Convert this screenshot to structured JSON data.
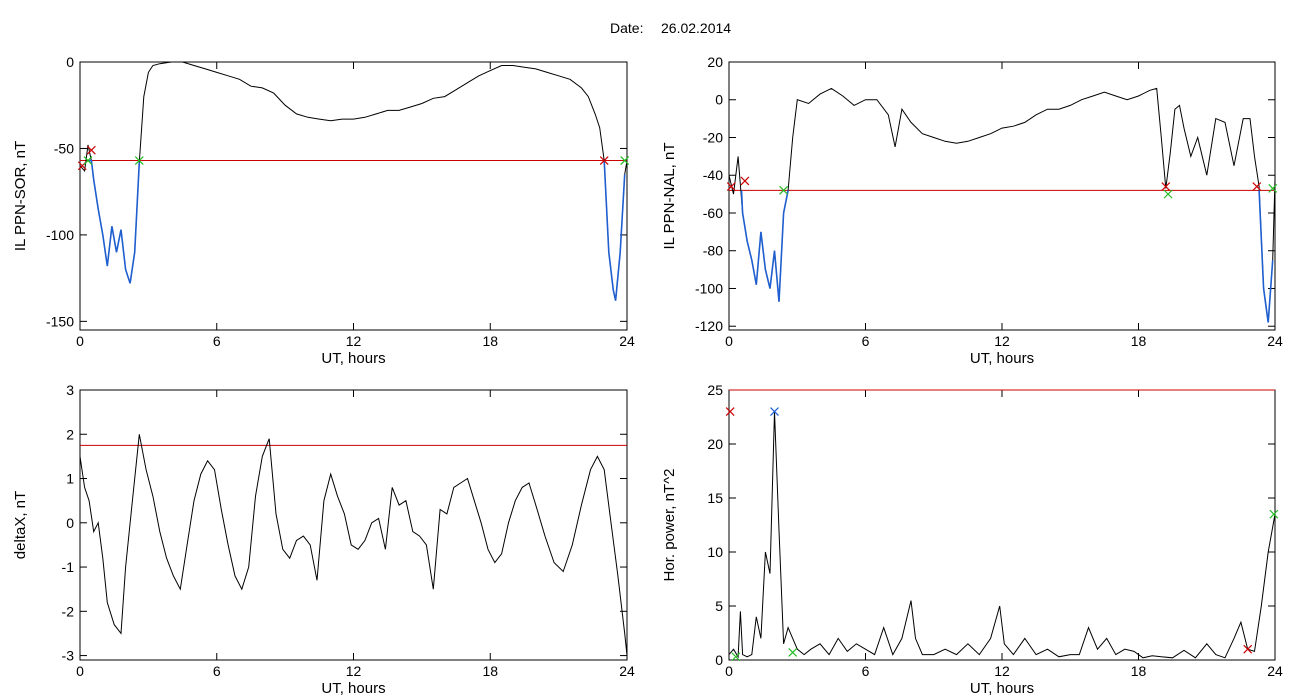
{
  "date_label": "Date:",
  "date_value": "26.02.2014",
  "chart_data": [
    {
      "type": "line",
      "panel": "top-left",
      "ylabel": "IL PPN-SOR, nT",
      "xlabel": "UT, hours",
      "xlim": [
        0,
        24
      ],
      "ylim": [
        -155,
        0
      ],
      "xticks": [
        0,
        6,
        12,
        18,
        24
      ],
      "yticks": [
        -150,
        -100,
        -50,
        0
      ],
      "threshold": -57,
      "series": [
        {
          "color": "#000000",
          "x": [
            0,
            0.2,
            0.35,
            0.5,
            0.6,
            0.8,
            1.0,
            1.2,
            1.4,
            1.6,
            1.8,
            2.0,
            2.2,
            2.4,
            2.6,
            2.8,
            3.0,
            3.2,
            3.5,
            4.0,
            4.5,
            5.0,
            5.5,
            6.0,
            6.5,
            7.0,
            7.5,
            8.0,
            8.5,
            9.0,
            9.5,
            10.0,
            10.5,
            11.0,
            11.5,
            12.0,
            12.5,
            13.0,
            13.5,
            14.0,
            14.5,
            15.0,
            15.5,
            16.0,
            16.5,
            17.0,
            17.5,
            18.0,
            18.5,
            19.0,
            19.5,
            20.0,
            20.5,
            21.0,
            21.5,
            22.0,
            22.3,
            22.6,
            22.8,
            23.0,
            23.2,
            23.4,
            23.5,
            23.7,
            23.9,
            24.0
          ],
          "values": [
            -60,
            -63,
            -48,
            -57,
            -68,
            -85,
            -100,
            -118,
            -95,
            -110,
            -97,
            -120,
            -128,
            -110,
            -58,
            -20,
            -6,
            -2,
            -1,
            0,
            0,
            -2,
            -4,
            -6,
            -8,
            -10,
            -14,
            -15,
            -18,
            -25,
            -30,
            -32,
            -33,
            -34,
            -33,
            -33,
            -32,
            -30,
            -28,
            -28,
            -26,
            -24,
            -21,
            -20,
            -16,
            -12,
            -8,
            -5,
            -2,
            -2,
            -3,
            -4,
            -6,
            -8,
            -10,
            -15,
            -20,
            -30,
            -38,
            -57,
            -110,
            -132,
            -138,
            -110,
            -65,
            -57
          ]
        },
        {
          "color": "#1f5fcf",
          "x": [
            0.35,
            0.5,
            0.6,
            0.8,
            1.0,
            1.2,
            1.4,
            1.6,
            1.8,
            2.0,
            2.2,
            2.4,
            2.6
          ],
          "values": [
            -57,
            -57,
            -68,
            -85,
            -100,
            -118,
            -95,
            -110,
            -97,
            -120,
            -128,
            -110,
            -58
          ]
        },
        {
          "color": "#1f5fcf",
          "x": [
            23.0,
            23.2,
            23.4,
            23.5,
            23.7,
            23.9
          ],
          "values": [
            -57,
            -110,
            -132,
            -138,
            -110,
            -65
          ]
        }
      ],
      "markers": [
        {
          "x": 0.1,
          "y": -60,
          "color": "#cc0000"
        },
        {
          "x": 0.5,
          "y": -51,
          "color": "#cc0000"
        },
        {
          "x": 0.35,
          "y": -57,
          "color": "#22bb22"
        },
        {
          "x": 2.6,
          "y": -57,
          "color": "#22bb22"
        },
        {
          "x": 23.0,
          "y": -57,
          "color": "#cc0000"
        },
        {
          "x": 23.9,
          "y": -57,
          "color": "#22bb22"
        }
      ]
    },
    {
      "type": "line",
      "panel": "top-right",
      "ylabel": "IL PPN-NAL, nT",
      "xlabel": "UT, hours",
      "xlim": [
        0,
        24
      ],
      "ylim": [
        -122,
        20
      ],
      "xticks": [
        0,
        6,
        12,
        18,
        24
      ],
      "yticks": [
        -120,
        -100,
        -80,
        -60,
        -40,
        -20,
        0,
        20
      ],
      "threshold": -48,
      "series": [
        {
          "color": "#000000",
          "x": [
            0,
            0.2,
            0.4,
            0.6,
            0.8,
            1.0,
            1.2,
            1.4,
            1.6,
            1.8,
            2.0,
            2.2,
            2.4,
            2.6,
            2.8,
            3.0,
            3.5,
            4.0,
            4.5,
            5.0,
            5.5,
            6.0,
            6.5,
            7.0,
            7.3,
            7.6,
            8.0,
            8.5,
            9.0,
            9.5,
            10.0,
            10.5,
            11.0,
            11.5,
            12.0,
            12.5,
            13.0,
            13.5,
            14.0,
            14.5,
            15.0,
            15.5,
            16.0,
            16.5,
            17.0,
            17.5,
            18.0,
            18.5,
            18.8,
            19.0,
            19.2,
            19.4,
            19.6,
            19.8,
            20.0,
            20.3,
            20.6,
            21.0,
            21.4,
            21.8,
            22.2,
            22.6,
            22.9,
            23.1,
            23.3,
            23.5,
            23.7,
            23.9,
            24.0
          ],
          "values": [
            -40,
            -50,
            -30,
            -60,
            -75,
            -85,
            -98,
            -70,
            -90,
            -100,
            -80,
            -107,
            -60,
            -48,
            -20,
            0,
            -2,
            3,
            6,
            2,
            -3,
            0,
            0,
            -8,
            -25,
            -5,
            -12,
            -18,
            -20,
            -22,
            -23,
            -22,
            -20,
            -18,
            -15,
            -14,
            -12,
            -8,
            -5,
            -5,
            -3,
            0,
            2,
            4,
            2,
            0,
            2,
            5,
            6,
            -20,
            -47,
            -28,
            -5,
            -3,
            -15,
            -30,
            -20,
            -40,
            -10,
            -12,
            -35,
            -10,
            -10,
            -30,
            -46,
            -100,
            -118,
            -85,
            -42
          ]
        },
        {
          "color": "#1f5fcf",
          "x": [
            0.55,
            0.6,
            0.8,
            1.0,
            1.2,
            1.4,
            1.6,
            1.8,
            2.0,
            2.2,
            2.4,
            2.6
          ],
          "values": [
            -48,
            -60,
            -75,
            -85,
            -98,
            -70,
            -90,
            -100,
            -80,
            -107,
            -60,
            -48
          ]
        },
        {
          "color": "#1f5fcf",
          "x": [
            23.3,
            23.5,
            23.7,
            23.9
          ],
          "values": [
            -48,
            -100,
            -118,
            -85
          ]
        }
      ],
      "markers": [
        {
          "x": 0.1,
          "y": -46,
          "color": "#cc0000"
        },
        {
          "x": 0.7,
          "y": -43,
          "color": "#cc0000"
        },
        {
          "x": 2.4,
          "y": -48,
          "color": "#22bb22"
        },
        {
          "x": 19.2,
          "y": -46,
          "color": "#cc0000"
        },
        {
          "x": 19.3,
          "y": -50,
          "color": "#22bb22"
        },
        {
          "x": 23.2,
          "y": -46,
          "color": "#cc0000"
        },
        {
          "x": 23.9,
          "y": -47,
          "color": "#22bb22"
        }
      ]
    },
    {
      "type": "line",
      "panel": "bottom-left",
      "ylabel": "deltaX, nT",
      "xlabel": "UT, hours",
      "xlim": [
        0,
        24
      ],
      "ylim": [
        -3.1,
        3
      ],
      "xticks": [
        0,
        6,
        12,
        18,
        24
      ],
      "yticks": [
        -3,
        -2,
        -1,
        0,
        1,
        2,
        3
      ],
      "threshold": 1.75,
      "series": [
        {
          "color": "#000000",
          "x": [
            0,
            0.2,
            0.4,
            0.6,
            0.8,
            1.0,
            1.2,
            1.5,
            1.8,
            2.0,
            2.3,
            2.6,
            2.9,
            3.2,
            3.5,
            3.8,
            4.1,
            4.4,
            4.7,
            5.0,
            5.3,
            5.6,
            5.9,
            6.2,
            6.5,
            6.8,
            7.1,
            7.4,
            7.7,
            8.0,
            8.3,
            8.6,
            8.9,
            9.2,
            9.5,
            9.8,
            10.1,
            10.4,
            10.7,
            11.0,
            11.3,
            11.6,
            11.9,
            12.2,
            12.5,
            12.8,
            13.1,
            13.4,
            13.7,
            14.0,
            14.3,
            14.6,
            14.9,
            15.2,
            15.5,
            15.8,
            16.1,
            16.4,
            16.7,
            17.0,
            17.3,
            17.6,
            17.9,
            18.2,
            18.5,
            18.8,
            19.1,
            19.4,
            19.7,
            20.0,
            20.4,
            20.8,
            21.2,
            21.6,
            22.0,
            22.4,
            22.7,
            23.0,
            23.3,
            23.6,
            23.9,
            24.0
          ],
          "values": [
            1.5,
            0.8,
            0.5,
            -0.2,
            0,
            -0.8,
            -1.8,
            -2.3,
            -2.5,
            -1.0,
            0.5,
            2.0,
            1.2,
            0.6,
            -0.2,
            -0.8,
            -1.2,
            -1.5,
            -0.5,
            0.5,
            1.1,
            1.4,
            1.2,
            0.3,
            -0.5,
            -1.2,
            -1.5,
            -1.0,
            0.6,
            1.5,
            1.9,
            0.2,
            -0.6,
            -0.8,
            -0.4,
            -0.3,
            -0.5,
            -1.3,
            0.5,
            1.1,
            0.6,
            0.2,
            -0.5,
            -0.6,
            -0.4,
            0.0,
            0.1,
            -0.6,
            0.8,
            0.4,
            0.5,
            -0.2,
            -0.3,
            -0.5,
            -1.5,
            0.3,
            0.2,
            0.8,
            0.9,
            1.0,
            0.5,
            0.0,
            -0.6,
            -0.9,
            -0.7,
            0.0,
            0.5,
            0.8,
            0.9,
            0.4,
            -0.3,
            -0.9,
            -1.1,
            -0.5,
            0.4,
            1.2,
            1.5,
            1.2,
            0.0,
            -1.2,
            -2.5,
            -3.0
          ]
        }
      ],
      "markers": []
    },
    {
      "type": "line",
      "panel": "bottom-right",
      "ylabel": "Hor. power, nT^2",
      "xlabel": "UT, hours",
      "xlim": [
        0,
        24
      ],
      "ylim": [
        0,
        25
      ],
      "xticks": [
        0,
        6,
        12,
        18,
        24
      ],
      "yticks": [
        0,
        5,
        10,
        15,
        20,
        25
      ],
      "threshold": 25,
      "series": [
        {
          "color": "#000000",
          "x": [
            0,
            0.2,
            0.4,
            0.5,
            0.6,
            0.8,
            1.0,
            1.2,
            1.4,
            1.6,
            1.8,
            2.0,
            2.2,
            2.4,
            2.6,
            2.8,
            3.0,
            3.3,
            3.6,
            4.0,
            4.4,
            4.8,
            5.2,
            5.6,
            6.0,
            6.4,
            6.8,
            7.2,
            7.6,
            8.0,
            8.2,
            8.5,
            9.0,
            9.5,
            10.0,
            10.5,
            11.0,
            11.5,
            11.9,
            12.1,
            12.5,
            13.0,
            13.5,
            14.0,
            14.5,
            15.0,
            15.4,
            15.8,
            16.2,
            16.6,
            17.0,
            17.4,
            17.8,
            18.2,
            18.6,
            19.0,
            19.5,
            20.0,
            20.5,
            21.0,
            21.4,
            21.8,
            22.2,
            22.5,
            22.8,
            23.1,
            23.4,
            23.7,
            24.0
          ],
          "values": [
            0.5,
            1,
            0.3,
            4.5,
            0.5,
            0.3,
            0.5,
            4,
            2,
            10,
            8,
            23,
            12,
            1.5,
            3,
            2,
            1,
            0.5,
            1,
            1.5,
            0.5,
            2,
            0.8,
            1.5,
            1,
            0.5,
            3,
            0.5,
            2,
            5.5,
            2,
            0.5,
            0.5,
            1,
            0.5,
            1.5,
            0.5,
            2,
            5,
            1.5,
            0.5,
            2,
            0.5,
            1,
            0.3,
            0.5,
            0.5,
            3,
            1,
            2,
            0.5,
            1,
            0.8,
            0.2,
            0.4,
            0.3,
            0.2,
            0.9,
            0.2,
            1.5,
            0.5,
            0.2,
            2,
            3.5,
            1,
            0.8,
            5,
            10,
            13.5
          ]
        }
      ],
      "markers": [
        {
          "x": 0.05,
          "y": 23,
          "color": "#cc0000"
        },
        {
          "x": 0.3,
          "y": 0.3,
          "color": "#22bb22"
        },
        {
          "x": 2.0,
          "y": 23,
          "color": "#1f5fcf"
        },
        {
          "x": 2.8,
          "y": 0.7,
          "color": "#22bb22"
        },
        {
          "x": 22.8,
          "y": 1,
          "color": "#cc0000"
        },
        {
          "x": 23.95,
          "y": 13.5,
          "color": "#22bb22"
        }
      ]
    }
  ]
}
